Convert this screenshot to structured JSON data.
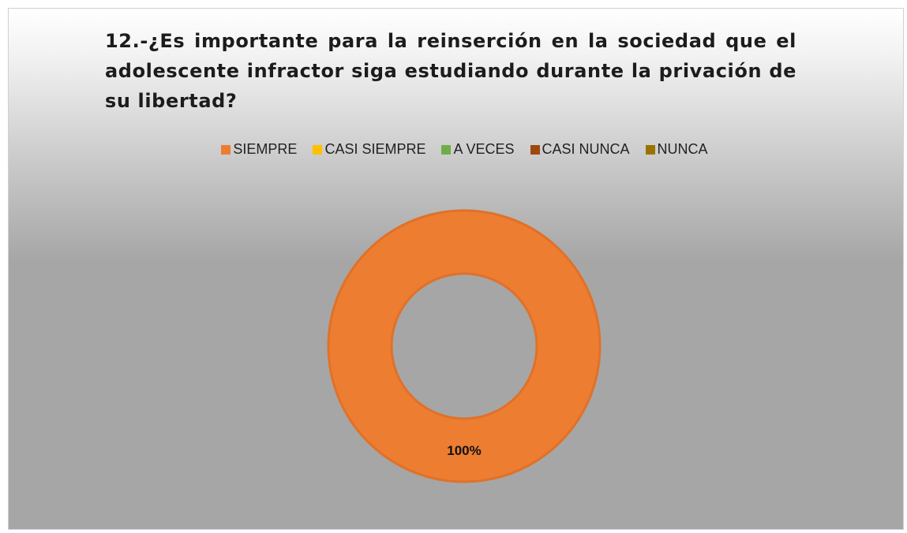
{
  "chart_data": {
    "type": "pie",
    "variant": "donut",
    "title": "12.-¿Es importante para la reinserción en la sociedad que el adolescente infractor siga estudiando durante la privación de su libertad?",
    "categories": [
      "SIEMPRE",
      "CASI SIEMPRE",
      "A VECES",
      "CASI NUNCA",
      "NUNCA"
    ],
    "values": [
      100,
      0,
      0,
      0,
      0
    ],
    "data_labels": [
      "100%",
      "",
      "",
      "",
      ""
    ],
    "colors": [
      "#ED7D31",
      "#FFC000",
      "#70AD47",
      "#9E480E",
      "#997300"
    ],
    "legend_position": "top",
    "background": "gray-gradient"
  }
}
